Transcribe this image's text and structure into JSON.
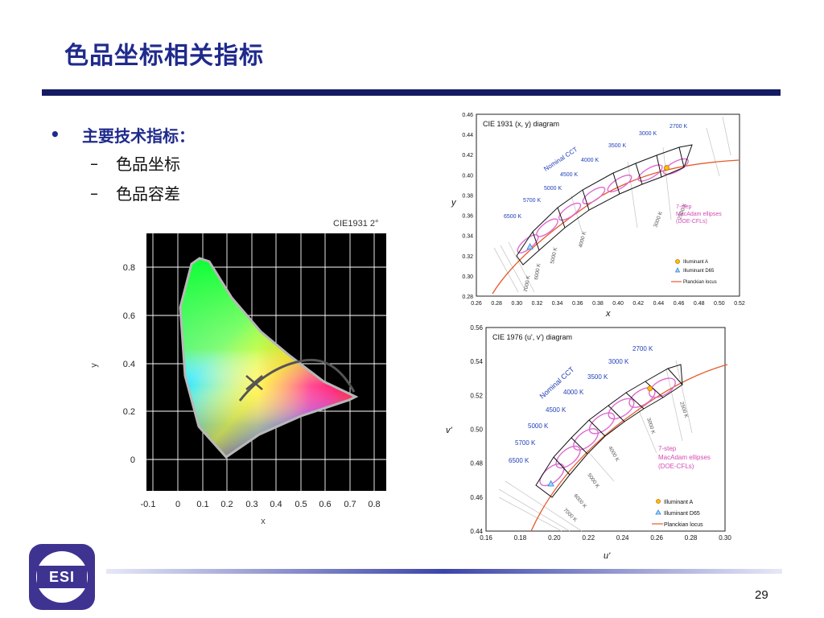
{
  "slide": {
    "title": "色品坐标相关指标",
    "bullet_main": "主要技术指标：",
    "sub_items": [
      "色品坐标",
      "色品容差"
    ],
    "page_number": "29",
    "logo_text": "ESI",
    "colors": {
      "title": "#1f2a8c",
      "rule": "#151b63",
      "logo": "#3e3391"
    }
  },
  "cie_left": {
    "label": "CIE1931 2°",
    "xlabel": "x",
    "ylabel": "y",
    "x_ticks": [
      "-0.1",
      "0",
      "0.1",
      "0.2",
      "0.3",
      "0.4",
      "0.5",
      "0.6",
      "0.7",
      "0.8"
    ],
    "y_ticks": [
      "0.8",
      "0.6",
      "0.4",
      "0.2",
      "0"
    ]
  },
  "chart_data": [
    {
      "type": "scatter",
      "title": "CIE 1931 (x, y) diagram",
      "xlabel": "x",
      "ylabel": "y",
      "xlim": [
        0.26,
        0.52
      ],
      "ylim": [
        0.28,
        0.46
      ],
      "x_ticks": [
        "0.26",
        "0.28",
        "0.30",
        "0.32",
        "0.34",
        "0.36",
        "0.38",
        "0.40",
        "0.42",
        "0.44",
        "0.46",
        "0.48",
        "0.50",
        "0.52"
      ],
      "y_ticks": [
        "0.46",
        "0.44",
        "0.42",
        "0.40",
        "0.38",
        "0.36",
        "0.34",
        "0.32",
        "0.30",
        "0.28"
      ],
      "cct_labels": [
        "2700 K",
        "3000 K",
        "3500 K",
        "4000 K",
        "4500 K",
        "5000 K",
        "5700 K",
        "6500 K"
      ],
      "isotherm_labels": [
        "2500 K",
        "3000 K",
        "4000 K",
        "5000 K",
        "6000 K",
        "7000 K"
      ],
      "annotations": [
        "Nominal CCT",
        "7-step",
        "MacAdam ellipses",
        "(DOE-CFLs)"
      ],
      "legend": [
        "Illuminant A",
        "Illuminant D65",
        "Planckian locus"
      ],
      "points": [
        {
          "name": "Illuminant A",
          "x": 0.448,
          "y": 0.407
        },
        {
          "name": "Illuminant D65",
          "x": 0.313,
          "y": 0.329
        }
      ]
    },
    {
      "type": "scatter",
      "title": "CIE 1976 (u', v') diagram",
      "xlabel": "u'",
      "ylabel": "v'",
      "xlim": [
        0.16,
        0.3
      ],
      "ylim": [
        0.44,
        0.56
      ],
      "x_ticks": [
        "0.16",
        "0.18",
        "0.20",
        "0.22",
        "0.24",
        "0.26",
        "0.28",
        "0.30"
      ],
      "y_ticks": [
        "0.56",
        "0.54",
        "0.52",
        "0.50",
        "0.48",
        "0.46",
        "0.44"
      ],
      "cct_labels": [
        "2700 K",
        "3000 K",
        "3500 K",
        "4000 K",
        "4500 K",
        "5000 K",
        "5700 K",
        "6500 K"
      ],
      "isotherm_labels": [
        "2500 K",
        "3000 K",
        "4000 K",
        "5000 K",
        "6000 K",
        "7000 K"
      ],
      "annotations": [
        "Nominal CCT",
        "7-step",
        "MacAdam ellipses",
        "(DOE-CFLs)"
      ],
      "legend": [
        "Illuminant A",
        "Illuminant D65",
        "Planckian locus"
      ],
      "points": [
        {
          "name": "Illuminant A",
          "x": 0.256,
          "y": 0.524
        },
        {
          "name": "Illuminant D65",
          "x": 0.198,
          "y": 0.468
        }
      ]
    }
  ]
}
